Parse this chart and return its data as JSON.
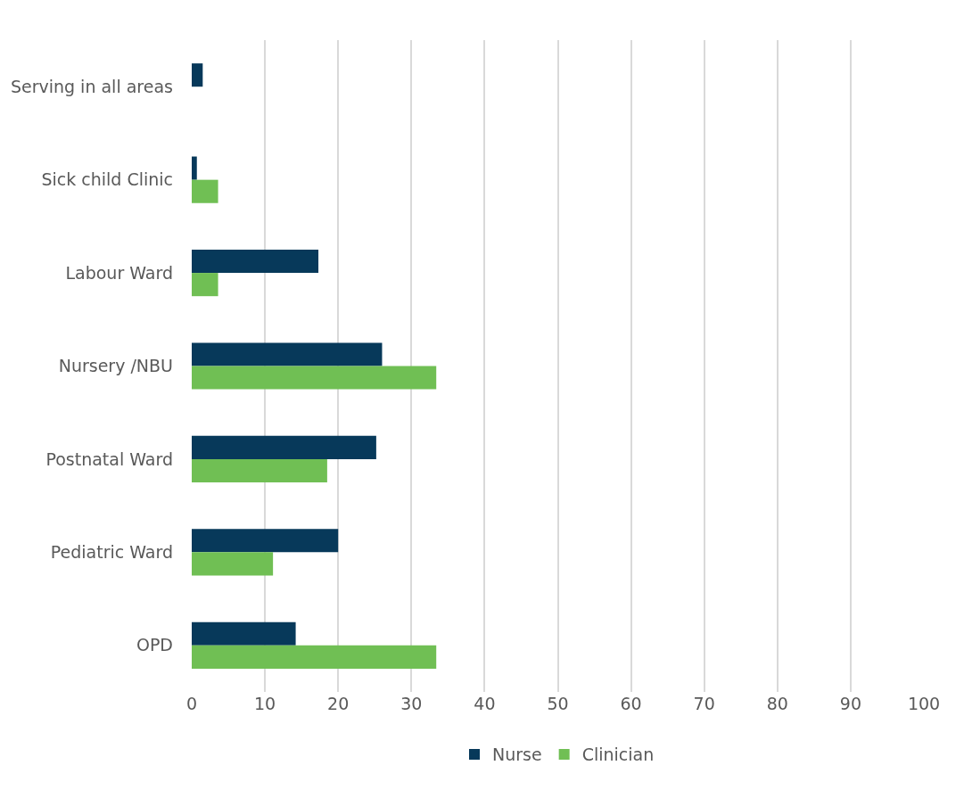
{
  "chart_data": {
    "type": "bar",
    "orientation": "horizontal",
    "categories": [
      "Serving in all areas",
      "Sick child Clinic",
      "Labour Ward",
      "Nursery /NBU",
      "Postnatal Ward",
      "Pediatric Ward",
      "OPD"
    ],
    "series": [
      {
        "name": "Nurse",
        "color": "#07395a",
        "values": [
          1.5,
          0.7,
          17.3,
          26.0,
          25.2,
          20.0,
          14.2
        ]
      },
      {
        "name": "Clinician",
        "color": "#70bf54",
        "values": [
          null,
          3.6,
          3.6,
          33.4,
          18.5,
          11.1,
          33.4
        ]
      }
    ],
    "xlim": [
      0,
      100
    ],
    "xticks": [
      0,
      10,
      20,
      30,
      40,
      50,
      60,
      70,
      80,
      90,
      100
    ],
    "grid": "x",
    "legend": "bottom"
  }
}
